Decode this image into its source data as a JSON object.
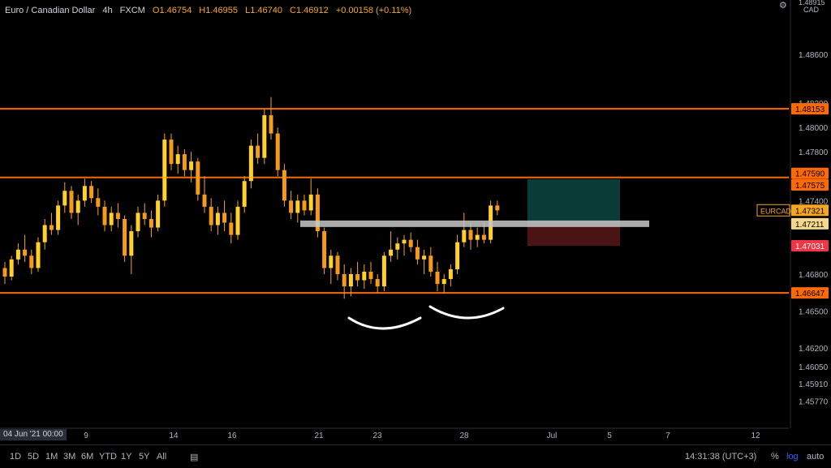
{
  "header": {
    "symbol_name": "Euro / Canadian Dollar",
    "interval": "4h",
    "source": "FXCM",
    "open": "O1.46754",
    "high": "H1.46955",
    "low": "L1.46740",
    "close": "C1.46912",
    "change": "+0.00158 (+0.11%)",
    "currency": "CAD"
  },
  "colors": {
    "up": "#f5a623",
    "down": "#f5a623",
    "level_line": "#ff6a00",
    "pivot_band": "#c8c8c8",
    "profit_zone": "#0b3b36",
    "loss_zone": "#4a1414",
    "curve": "#ffffff"
  },
  "chart_data": {
    "type": "candlestick",
    "y_axis": {
      "scale": "log",
      "ticks": [
        "1.48600",
        "1.48200",
        "1.48000",
        "1.47800",
        "1.47400",
        "1.46800",
        "1.46500",
        "1.46200",
        "1.46050",
        "1.45910",
        "1.45770"
      ],
      "top_value": "1.48915",
      "range": [
        1.4555,
        1.4905
      ]
    },
    "x_axis": {
      "ticks": [
        "9",
        "14",
        "16",
        "21",
        "23",
        "28",
        "Jul",
        "5",
        "7",
        "12"
      ],
      "current_date": "04 Jun '21  00:00"
    },
    "price_levels": [
      {
        "label": "1.48153",
        "value": 1.48153,
        "kind": "resistance"
      },
      {
        "label": "1.47590",
        "value": 1.4759,
        "kind": "resistance"
      },
      {
        "label": "1.46647",
        "value": 1.46647,
        "kind": "support"
      }
    ],
    "axis_badges": [
      {
        "label": "1.47575",
        "kind": "target"
      },
      {
        "label": "1.47321",
        "kind": "last",
        "prefix": "EURCAD"
      },
      {
        "label": "1.47211",
        "kind": "entry"
      },
      {
        "label": "1.47031",
        "kind": "stop"
      }
    ],
    "position": {
      "entry": 1.47211,
      "target": 1.47575,
      "stop": 1.47031
    },
    "candles": [
      [
        1.4685,
        1.469,
        1.4672,
        1.4678
      ],
      [
        1.4678,
        1.4695,
        1.4675,
        1.4692
      ],
      [
        1.4692,
        1.4705,
        1.4688,
        1.47
      ],
      [
        1.47,
        1.4712,
        1.469,
        1.4695
      ],
      [
        1.4695,
        1.47,
        1.468,
        1.4685
      ],
      [
        1.4685,
        1.471,
        1.4682,
        1.4706
      ],
      [
        1.4706,
        1.4725,
        1.47,
        1.472
      ],
      [
        1.472,
        1.473,
        1.4712,
        1.4716
      ],
      [
        1.4716,
        1.474,
        1.4712,
        1.4736
      ],
      [
        1.4736,
        1.4755,
        1.473,
        1.4748
      ],
      [
        1.4748,
        1.4752,
        1.4725,
        1.473
      ],
      [
        1.473,
        1.4745,
        1.472,
        1.474
      ],
      [
        1.474,
        1.4758,
        1.4735,
        1.4752
      ],
      [
        1.4752,
        1.4756,
        1.4738,
        1.4742
      ],
      [
        1.4742,
        1.475,
        1.4728,
        1.4735
      ],
      [
        1.4735,
        1.474,
        1.4715,
        1.472
      ],
      [
        1.472,
        1.4735,
        1.4715,
        1.473
      ],
      [
        1.473,
        1.4738,
        1.4718,
        1.4725
      ],
      [
        1.4725,
        1.4728,
        1.469,
        1.4695
      ],
      [
        1.4695,
        1.472,
        1.468,
        1.4715
      ],
      [
        1.4715,
        1.4735,
        1.471,
        1.473
      ],
      [
        1.473,
        1.4738,
        1.472,
        1.4725
      ],
      [
        1.4725,
        1.4732,
        1.471,
        1.4718
      ],
      [
        1.4718,
        1.4745,
        1.4715,
        1.474
      ],
      [
        1.474,
        1.4795,
        1.4735,
        1.479
      ],
      [
        1.479,
        1.4795,
        1.4765,
        1.477
      ],
      [
        1.477,
        1.4785,
        1.4762,
        1.4778
      ],
      [
        1.4778,
        1.4782,
        1.476,
        1.4765
      ],
      [
        1.4765,
        1.478,
        1.4755,
        1.4772
      ],
      [
        1.4772,
        1.4775,
        1.474,
        1.4745
      ],
      [
        1.4745,
        1.476,
        1.473,
        1.4735
      ],
      [
        1.4735,
        1.4742,
        1.4715,
        1.472
      ],
      [
        1.472,
        1.4735,
        1.4712,
        1.473
      ],
      [
        1.473,
        1.474,
        1.4715,
        1.4722
      ],
      [
        1.4722,
        1.473,
        1.4705,
        1.4712
      ],
      [
        1.4712,
        1.474,
        1.4708,
        1.4735
      ],
      [
        1.4735,
        1.476,
        1.473,
        1.4756
      ],
      [
        1.4756,
        1.479,
        1.475,
        1.4785
      ],
      [
        1.4785,
        1.4795,
        1.477,
        1.4775
      ],
      [
        1.4775,
        1.4815,
        1.477,
        1.481
      ],
      [
        1.481,
        1.4825,
        1.479,
        1.4795
      ],
      [
        1.4795,
        1.48,
        1.476,
        1.4765
      ],
      [
        1.4765,
        1.477,
        1.4735,
        1.474
      ],
      [
        1.474,
        1.4748,
        1.4725,
        1.473
      ],
      [
        1.473,
        1.4745,
        1.4722,
        1.474
      ],
      [
        1.474,
        1.4745,
        1.4728,
        1.4732
      ],
      [
        1.4732,
        1.4758,
        1.4728,
        1.4745
      ],
      [
        1.4745,
        1.475,
        1.471,
        1.4715
      ],
      [
        1.4715,
        1.4718,
        1.468,
        1.4685
      ],
      [
        1.4685,
        1.47,
        1.4672,
        1.4695
      ],
      [
        1.4695,
        1.4698,
        1.4675,
        1.468
      ],
      [
        1.468,
        1.4688,
        1.466,
        1.467
      ],
      [
        1.467,
        1.4685,
        1.4662,
        1.468
      ],
      [
        1.468,
        1.469,
        1.467,
        1.4675
      ],
      [
        1.4675,
        1.4688,
        1.4668,
        1.4682
      ],
      [
        1.4682,
        1.469,
        1.4672,
        1.4676
      ],
      [
        1.4676,
        1.468,
        1.4665,
        1.467
      ],
      [
        1.467,
        1.4698,
        1.4666,
        1.4695
      ],
      [
        1.4695,
        1.4715,
        1.469,
        1.47
      ],
      [
        1.47,
        1.471,
        1.4692,
        1.4705
      ],
      [
        1.4705,
        1.4712,
        1.4695,
        1.4708
      ],
      [
        1.4708,
        1.4714,
        1.4698,
        1.4702
      ],
      [
        1.4702,
        1.4708,
        1.4688,
        1.4692
      ],
      [
        1.4692,
        1.47,
        1.468,
        1.4695
      ],
      [
        1.4695,
        1.4702,
        1.4678,
        1.4682
      ],
      [
        1.4682,
        1.469,
        1.4666,
        1.4672
      ],
      [
        1.4672,
        1.468,
        1.4665,
        1.4676
      ],
      [
        1.4676,
        1.4688,
        1.467,
        1.4684
      ],
      [
        1.4684,
        1.4712,
        1.468,
        1.4706
      ],
      [
        1.4706,
        1.473,
        1.4702,
        1.4716
      ],
      [
        1.4716,
        1.4722,
        1.47,
        1.4708
      ],
      [
        1.4708,
        1.4718,
        1.4702,
        1.4712
      ],
      [
        1.4712,
        1.4722,
        1.4705,
        1.4708
      ],
      [
        1.4708,
        1.474,
        1.4705,
        1.4736
      ],
      [
        1.4736,
        1.474,
        1.4728,
        1.4732
      ]
    ]
  },
  "bottom": {
    "timeframes": [
      "1D",
      "5D",
      "1M",
      "3M",
      "6M",
      "YTD",
      "1Y",
      "5Y",
      "All"
    ],
    "clock": "14:31:38 (UTC+3)",
    "percent": "%",
    "log": "log",
    "auto": "auto"
  }
}
